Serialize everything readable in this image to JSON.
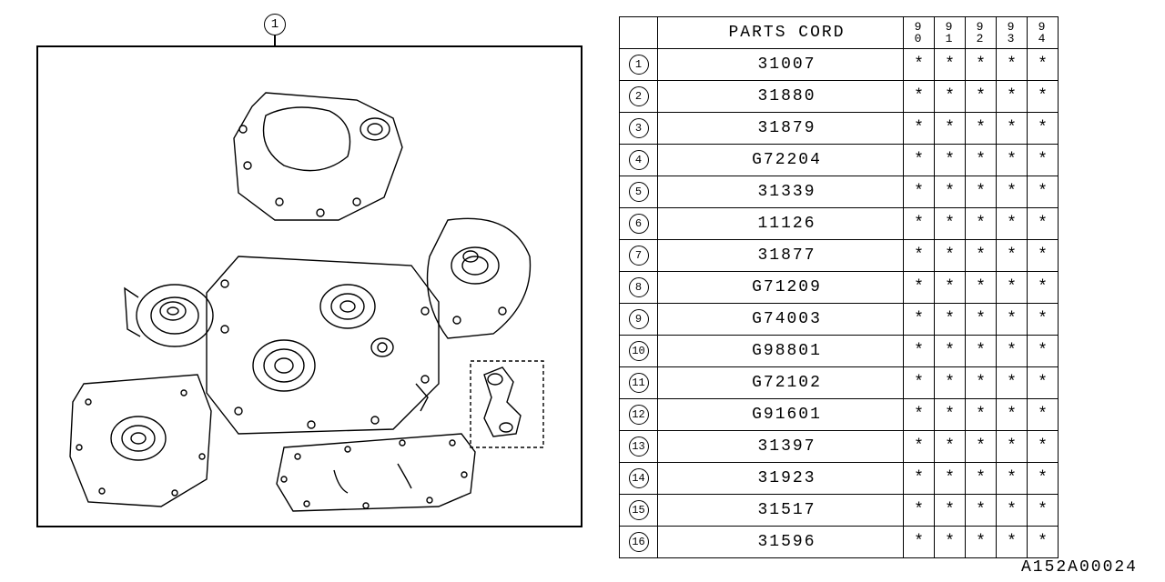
{
  "callout_number": "1",
  "table": {
    "header_label": "PARTS CORD",
    "years": [
      "90",
      "91",
      "92",
      "93",
      "94"
    ],
    "rows": [
      {
        "num": "1",
        "code": "31007",
        "marks": [
          "*",
          "*",
          "*",
          "*",
          "*"
        ]
      },
      {
        "num": "2",
        "code": "31880",
        "marks": [
          "*",
          "*",
          "*",
          "*",
          "*"
        ]
      },
      {
        "num": "3",
        "code": "31879",
        "marks": [
          "*",
          "*",
          "*",
          "*",
          "*"
        ]
      },
      {
        "num": "4",
        "code": "G72204",
        "marks": [
          "*",
          "*",
          "*",
          "*",
          "*"
        ]
      },
      {
        "num": "5",
        "code": "31339",
        "marks": [
          "*",
          "*",
          "*",
          "*",
          "*"
        ]
      },
      {
        "num": "6",
        "code": "11126",
        "marks": [
          "*",
          "*",
          "*",
          "*",
          "*"
        ]
      },
      {
        "num": "7",
        "code": "31877",
        "marks": [
          "*",
          "*",
          "*",
          "*",
          "*"
        ]
      },
      {
        "num": "8",
        "code": "G71209",
        "marks": [
          "*",
          "*",
          "*",
          "*",
          "*"
        ]
      },
      {
        "num": "9",
        "code": "G74003",
        "marks": [
          "*",
          "*",
          "*",
          "*",
          "*"
        ]
      },
      {
        "num": "10",
        "code": "G98801",
        "marks": [
          "*",
          "*",
          "*",
          "*",
          "*"
        ]
      },
      {
        "num": "11",
        "code": "G72102",
        "marks": [
          "*",
          "*",
          "*",
          "*",
          "*"
        ]
      },
      {
        "num": "12",
        "code": "G91601",
        "marks": [
          "*",
          "*",
          "*",
          "*",
          "*"
        ]
      },
      {
        "num": "13",
        "code": "31397",
        "marks": [
          "*",
          "*",
          "*",
          "*",
          "*"
        ]
      },
      {
        "num": "14",
        "code": "31923",
        "marks": [
          "*",
          "*",
          "*",
          "*",
          "*"
        ]
      },
      {
        "num": "15",
        "code": "31517",
        "marks": [
          "*",
          "*",
          "*",
          "*",
          "*"
        ]
      },
      {
        "num": "16",
        "code": "31596",
        "marks": [
          "*",
          "*",
          "*",
          "*",
          "*"
        ]
      }
    ]
  },
  "drawing_code": "A152A00024",
  "diagram": {
    "stroke": "#000000",
    "stroke_width": 1.2,
    "fill": "#ffffff"
  }
}
